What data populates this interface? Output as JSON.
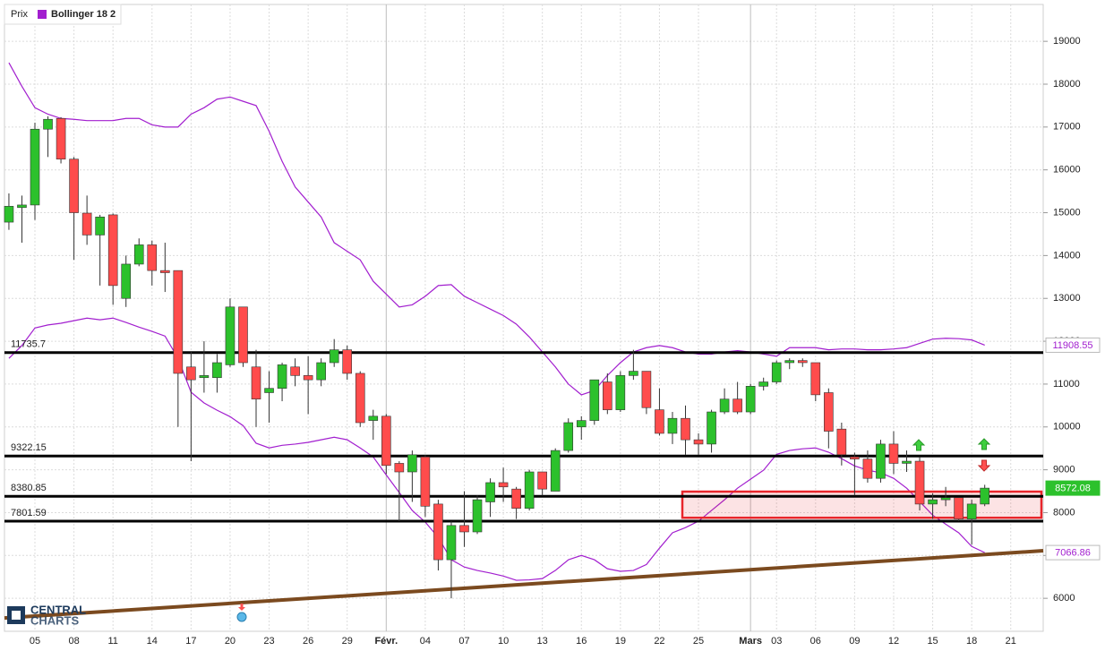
{
  "chart_data": {
    "type": "candlestick",
    "categories": [
      null,
      null,
      "05",
      null,
      null,
      "08",
      null,
      null,
      "11",
      null,
      null,
      "14",
      null,
      null,
      "17",
      null,
      null,
      "20",
      null,
      null,
      "23",
      null,
      null,
      "26",
      null,
      null,
      "29",
      null,
      null,
      "Févr.",
      null,
      null,
      "04",
      null,
      null,
      "07",
      null,
      null,
      "10",
      null,
      null,
      "13",
      null,
      null,
      "16",
      null,
      null,
      "19",
      null,
      null,
      "22",
      null,
      null,
      "25",
      null,
      null,
      null,
      "Mars",
      null,
      "03",
      null,
      null,
      "06",
      null,
      null,
      "09",
      null,
      null,
      "12",
      null,
      null,
      "15",
      null,
      null,
      "18",
      null,
      null,
      "21"
    ],
    "series": [
      {
        "name": "Prix",
        "up_color": "#2cc12c",
        "down_color": "#ff4c4c",
        "open": [
          14780,
          15120,
          15180,
          16950,
          17200,
          16250,
          14990,
          14480,
          14950,
          13000,
          13800,
          14250,
          13650,
          13650,
          11400,
          11150,
          11150,
          11450,
          12800,
          11400,
          10800,
          10900,
          11400,
          11200,
          11100,
          11500,
          11800,
          11250,
          10150,
          10250,
          9150,
          8950,
          9300,
          8200,
          6900,
          7700,
          7550,
          8250,
          8700,
          8550,
          8100,
          8950,
          8500,
          9450,
          10000,
          10150,
          11050,
          10400,
          11200,
          11300,
          10400,
          9850,
          10200,
          9700,
          9600,
          10350,
          10650,
          10350,
          10950,
          11050,
          11500,
          11550,
          11500,
          10800,
          9950,
          9300,
          9250,
          8800,
          9600,
          9150,
          9200,
          8200,
          8300,
          8350,
          7850,
          8200,
          null,
          null
        ],
        "high": [
          15450,
          15400,
          17100,
          17250,
          17230,
          16300,
          15400,
          14950,
          14980,
          14000,
          14400,
          14350,
          14300,
          13650,
          11750,
          12000,
          11700,
          13000,
          12800,
          11800,
          11300,
          11500,
          11600,
          11650,
          11600,
          12050,
          11900,
          11300,
          10400,
          10300,
          9200,
          9450,
          9350,
          8300,
          7800,
          8500,
          8400,
          8800,
          9050,
          8600,
          9000,
          8950,
          9500,
          10200,
          10250,
          11100,
          11250,
          11300,
          11800,
          11300,
          10900,
          10350,
          10500,
          9850,
          10400,
          10900,
          11050,
          11000,
          11150,
          11550,
          11600,
          11600,
          11500,
          10900,
          10100,
          9400,
          9450,
          9700,
          9900,
          9450,
          9300,
          8450,
          8600,
          8350,
          8300,
          8650,
          null,
          null
        ],
        "low": [
          14600,
          14300,
          14830,
          16300,
          16150,
          13900,
          14250,
          13300,
          12850,
          12800,
          13750,
          13300,
          13150,
          10000,
          9200,
          10800,
          10800,
          11400,
          11400,
          10000,
          10100,
          10600,
          10950,
          10300,
          10950,
          11400,
          11100,
          10000,
          9700,
          8900,
          7800,
          8250,
          7900,
          6650,
          6000,
          7200,
          7500,
          7900,
          8250,
          7850,
          8050,
          8400,
          8500,
          9400,
          9700,
          10050,
          10300,
          10350,
          11100,
          10300,
          9800,
          9600,
          9350,
          9350,
          9400,
          10300,
          10300,
          10300,
          10850,
          11000,
          11350,
          11400,
          10600,
          9500,
          9100,
          8400,
          8700,
          8700,
          8900,
          8950,
          8050,
          7850,
          8150,
          7800,
          7250,
          8150,
          null,
          null
        ],
        "close": [
          15150,
          15180,
          16950,
          17180,
          16250,
          15000,
          14480,
          14900,
          13300,
          13800,
          14250,
          13650,
          13600,
          11250,
          11100,
          11200,
          11500,
          12800,
          11500,
          10650,
          10900,
          11450,
          11200,
          11100,
          11500,
          11800,
          11250,
          10100,
          10250,
          9100,
          8950,
          9350,
          8150,
          6900,
          7700,
          7550,
          8300,
          8700,
          8600,
          8100,
          8950,
          8550,
          9450,
          10100,
          10150,
          11100,
          10400,
          11200,
          11300,
          10450,
          9850,
          10200,
          9700,
          9600,
          10350,
          10650,
          10350,
          10950,
          11050,
          11500,
          11550,
          11500,
          10750,
          9900,
          9350,
          9250,
          8800,
          9600,
          9150,
          9200,
          8200,
          8300,
          8350,
          7850,
          8200,
          8572.08,
          null,
          null
        ]
      },
      {
        "name": "Bollinger 18 2",
        "color": "#a21fcf",
        "upper": [
          18500,
          17950,
          17450,
          17300,
          17200,
          17180,
          17150,
          17150,
          17150,
          17200,
          17200,
          17050,
          17000,
          17000,
          17300,
          17450,
          17650,
          17700,
          17600,
          17500,
          16900,
          16200,
          15600,
          15250,
          14900,
          14300,
          14100,
          13900,
          13400,
          13100,
          12800,
          12850,
          13050,
          13300,
          13320,
          13050,
          12900,
          12750,
          12600,
          12400,
          12100,
          11750,
          11400,
          11000,
          10750,
          10850,
          11200,
          11500,
          11750,
          11850,
          11900,
          11850,
          11750,
          11700,
          11700,
          11750,
          11780,
          11750,
          11700,
          11650,
          11850,
          11850,
          11850,
          11800,
          11820,
          11820,
          11800,
          11800,
          11820,
          11850,
          11950,
          12050,
          12070,
          12060,
          12030,
          11908.55,
          null,
          null
        ],
        "lower": [
          11600,
          11900,
          12310,
          12380,
          12420,
          12480,
          12540,
          12500,
          12540,
          12440,
          12330,
          12230,
          12120,
          11600,
          10810,
          10560,
          10390,
          10240,
          10030,
          9620,
          9510,
          9570,
          9600,
          9640,
          9700,
          9760,
          9700,
          9510,
          9300,
          8880,
          8470,
          8050,
          7780,
          7420,
          6900,
          6730,
          6650,
          6590,
          6520,
          6420,
          6430,
          6460,
          6650,
          6900,
          7000,
          6900,
          6690,
          6630,
          6650,
          6790,
          7170,
          7530,
          7650,
          7800,
          8050,
          8300,
          8570,
          8780,
          8990,
          9360,
          9450,
          9490,
          9510,
          9410,
          9260,
          9090,
          8990,
          8930,
          8800,
          8570,
          8260,
          7940,
          7730,
          7530,
          7210,
          7066.86,
          null,
          null
        ]
      }
    ],
    "ylim": [
      5230,
      19860
    ],
    "yticks": [
      6000,
      7000,
      8000,
      9000,
      10000,
      11000,
      12000,
      13000,
      14000,
      15000,
      16000,
      17000,
      18000,
      19000
    ],
    "grid": true,
    "levels": [
      11735.7,
      9322.15,
      8380.85,
      7801.59
    ],
    "level_color": "#000000",
    "trendline": {
      "values": [
        5540,
        7110
      ],
      "color": "#7b4a1f"
    },
    "zone": {
      "top": 8490,
      "bottom": 7880,
      "color": "#e8262b"
    },
    "watermark": [
      "CENTRAL",
      "CHARTS"
    ]
  }
}
